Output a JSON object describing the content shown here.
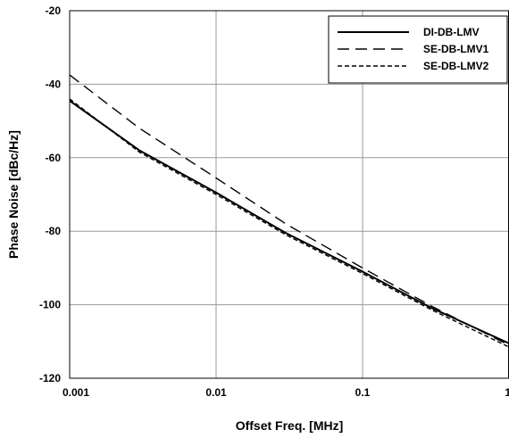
{
  "chart_data": {
    "type": "line",
    "title": "",
    "xlabel": "Offset Freq. [MHz]",
    "ylabel": "Phase Noise [dBc/Hz]",
    "xscale": "log",
    "xlim": [
      0.001,
      1
    ],
    "ylim": [
      -120,
      -20
    ],
    "xticks": [
      "0.001",
      "0.01",
      "0.1",
      "1"
    ],
    "yticks": [
      "-20",
      "-40",
      "-60",
      "-80",
      "-100",
      "-120"
    ],
    "grid": true,
    "legend_position": "top-right",
    "series": [
      {
        "name": "DI-DB-LMV",
        "dash": "solid",
        "x": [
          0.001,
          0.003,
          0.01,
          0.03,
          0.1,
          0.3,
          1
        ],
        "y": [
          -44.5,
          -58,
          -69.5,
          -80.5,
          -91,
          -101,
          -110.5
        ]
      },
      {
        "name": "SE-DB-LMV1",
        "dash": "long-dash",
        "x": [
          0.001,
          0.003,
          0.01,
          0.03,
          0.1,
          0.3,
          1
        ],
        "y": [
          -37.5,
          -52,
          -65.5,
          -78,
          -90,
          -100.5,
          -111
        ]
      },
      {
        "name": "SE-DB-LMV2",
        "dash": "short-dash",
        "x": [
          0.001,
          0.003,
          0.01,
          0.03,
          0.1,
          0.3,
          1
        ],
        "y": [
          -44,
          -58.5,
          -70,
          -81,
          -91.5,
          -101.5,
          -111.5
        ]
      }
    ]
  }
}
